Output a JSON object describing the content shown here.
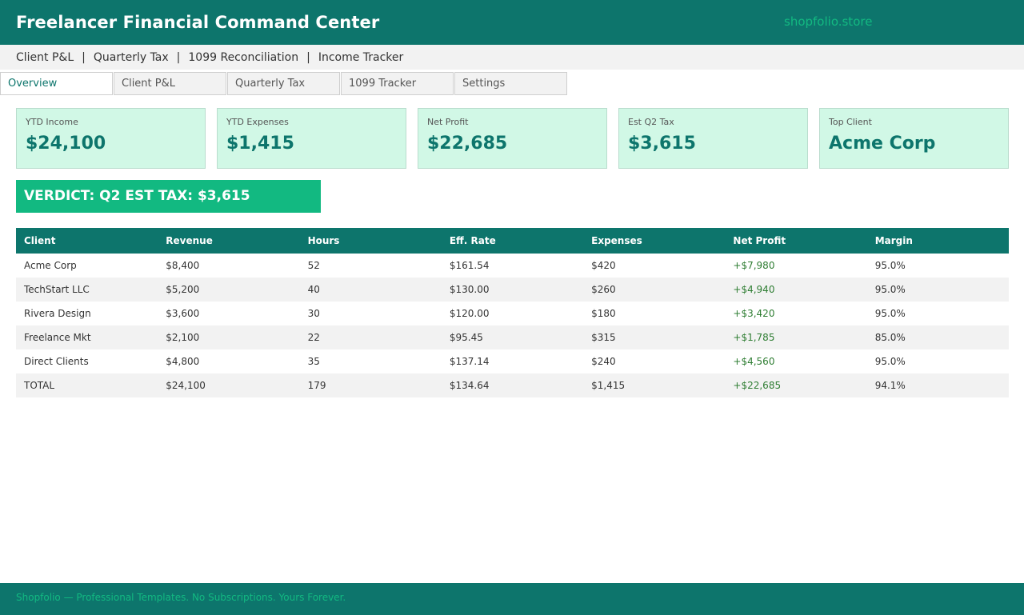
{
  "header": {
    "title": "Freelancer Financial Command Center",
    "store": "shopfolio.store"
  },
  "subnav": {
    "links": [
      "Client P&L",
      "Quarterly Tax",
      "1099 Reconciliation",
      "Income Tracker"
    ],
    "separator": "|"
  },
  "tabs": [
    {
      "label": "Overview",
      "active": true
    },
    {
      "label": "Client P&L",
      "active": false
    },
    {
      "label": "Quarterly Tax",
      "active": false
    },
    {
      "label": "1099 Tracker",
      "active": false
    },
    {
      "label": "Settings",
      "active": false
    }
  ],
  "cards": [
    {
      "label": "YTD Income",
      "value": "$24,100"
    },
    {
      "label": "YTD Expenses",
      "value": "$1,415"
    },
    {
      "label": "Net Profit",
      "value": "$22,685"
    },
    {
      "label": "Est Q2 Tax",
      "value": "$3,615"
    },
    {
      "label": "Top Client",
      "value": "Acme Corp"
    }
  ],
  "verdict": "VERDICT: Q2 EST TAX: $3,615",
  "table": {
    "columns": [
      "Client",
      "Revenue",
      "Hours",
      "Eff. Rate",
      "Expenses",
      "Net Profit",
      "Margin"
    ],
    "rows": [
      [
        "Acme Corp",
        "$8,400",
        "52",
        "$161.54",
        "$420",
        "+$7,980",
        "95.0%"
      ],
      [
        "TechStart LLC",
        "$5,200",
        "40",
        "$130.00",
        "$260",
        "+$4,940",
        "95.0%"
      ],
      [
        "Rivera Design",
        "$3,600",
        "30",
        "$120.00",
        "$180",
        "+$3,420",
        "95.0%"
      ],
      [
        "Freelance Mkt",
        "$2,100",
        "22",
        "$95.45",
        "$315",
        "+$1,785",
        "85.0%"
      ],
      [
        "Direct Clients",
        "$4,800",
        "35",
        "$137.14",
        "$240",
        "+$4,560",
        "95.0%"
      ],
      [
        "TOTAL",
        "$24,100",
        "179",
        "$134.64",
        "$1,415",
        "+$22,685",
        "94.1%"
      ]
    ]
  },
  "footer": "Shopfolio — Professional Templates. No Subscriptions. Yours Forever.",
  "colors": {
    "primary": "#0d756c",
    "accent": "#12b981",
    "card_bg": "#d1f8e6",
    "positive": "#2e7d32"
  }
}
